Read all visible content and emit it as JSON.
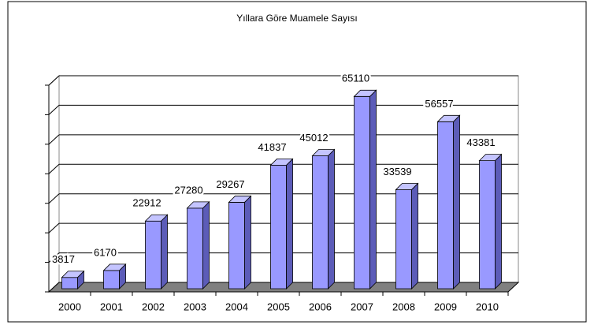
{
  "chart_data": {
    "type": "bar3d",
    "title": "Yıllara Göre Muamele Sayısı",
    "categories": [
      "2000",
      "2001",
      "2002",
      "2003",
      "2004",
      "2005",
      "2006",
      "2007",
      "2008",
      "2009",
      "2010"
    ],
    "values": [
      3817,
      6170,
      22912,
      27280,
      29267,
      41837,
      45012,
      65110,
      33539,
      56557,
      43381
    ],
    "color": "#9999ff",
    "ylim": [
      0,
      70000
    ],
    "yticks": [
      0,
      10000,
      20000,
      30000,
      40000,
      50000,
      60000,
      70000
    ],
    "grid": true
  }
}
